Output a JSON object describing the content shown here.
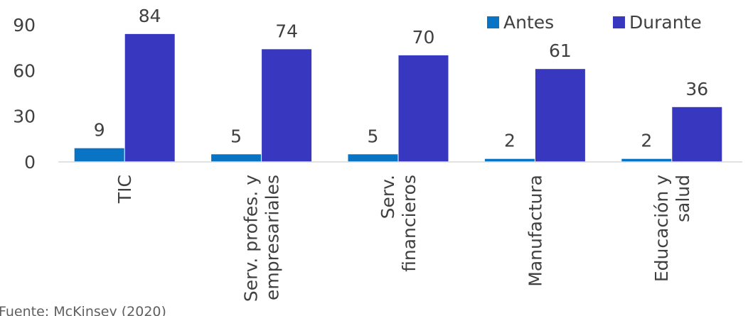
{
  "chart_data": {
    "type": "bar",
    "categories": [
      [
        "TIC"
      ],
      [
        "Serv. profes. y",
        "empresariales"
      ],
      [
        "Serv.",
        "financieros"
      ],
      [
        "Manufactura"
      ],
      [
        "Educación y",
        "salud"
      ]
    ],
    "series": [
      {
        "name": "Antes",
        "values": [
          9,
          5,
          5,
          2,
          2
        ],
        "color": "#0a74c4"
      },
      {
        "name": "Durante",
        "values": [
          84,
          74,
          70,
          61,
          36
        ],
        "color": "#3737bf"
      }
    ],
    "ylim": [
      0,
      90
    ],
    "yticks": [
      0,
      30,
      60,
      90
    ],
    "legend": "top-right",
    "grid": false
  },
  "source_text": "Fuente: McKinsey (2020)"
}
